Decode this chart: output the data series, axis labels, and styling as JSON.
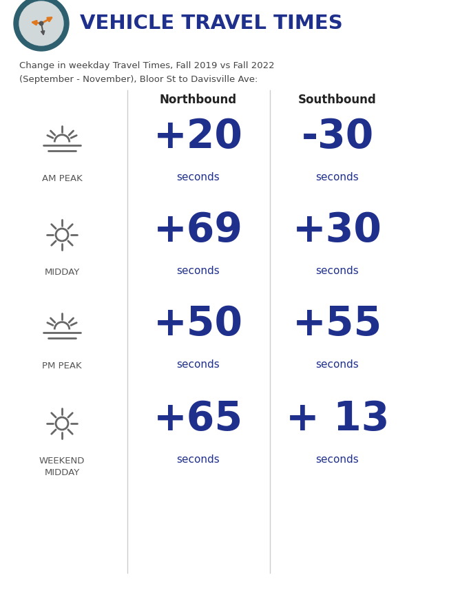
{
  "title": "VEHICLE TRAVEL TIMES",
  "subtitle_line1": "Change in weekday Travel Times, Fall 2019 vs Fall 2022",
  "subtitle_line2": "(September - November), Bloor St to Davisville Ave:",
  "col_headers": [
    "Northbound",
    "Southbound"
  ],
  "rows": [
    {
      "label": "AM PEAK",
      "north": "+20",
      "south": "-30",
      "sun_style": "sunrise"
    },
    {
      "label": "MIDDAY",
      "north": "+69",
      "south": "+30",
      "sun_style": "full"
    },
    {
      "label": "PM PEAK",
      "north": "+50",
      "south": "+55",
      "sun_style": "sunset"
    },
    {
      "label": "WEEKEND\nMIDDAY",
      "north": "+65",
      "south": "+ 13",
      "sun_style": "full2"
    }
  ],
  "seconds_label": "seconds",
  "value_color": "#1f2f8c",
  "label_color": "#555555",
  "header_color": "#222222",
  "title_color": "#1f2f8c",
  "clock_ring_color": "#2d5f6e",
  "clock_face_color": "#d0d8da",
  "clock_hand_color_orange": "#e07820",
  "clock_hand_color_dark": "#555555",
  "sun_color": "#666666",
  "divider_color": "#cccccc",
  "background_color": "#ffffff",
  "fig_width": 6.52,
  "fig_height": 8.67,
  "dpi": 100
}
